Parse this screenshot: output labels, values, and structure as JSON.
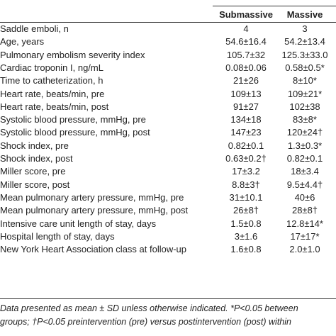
{
  "table": {
    "columns": [
      "Submassive",
      "Massive"
    ],
    "rows": [
      [
        "Saddle emboli, n",
        "4",
        "3"
      ],
      [
        "Age, years",
        "54.6±16.4",
        "54.2±13.4"
      ],
      [
        "Pulmonary embolism severity index",
        "105.7±32",
        "125.3±33.0"
      ],
      [
        "Cardiac troponin I, ng/mL",
        "0.08±0.06",
        "0.58±0.5*"
      ],
      [
        "Time to catheterization, h",
        "21±26",
        "8±10*"
      ],
      [
        "Heart rate, beats/min, pre",
        "109±13",
        "109±21*"
      ],
      [
        "Heart rate, beats/min, post",
        "91±27",
        "102±38"
      ],
      [
        "Systolic blood pressure, mmHg, pre",
        "134±18",
        "83±8*"
      ],
      [
        "Systolic blood pressure, mmHg, post",
        "147±23",
        "120±24†"
      ],
      [
        "Shock index, pre",
        "0.82±0.1",
        "1.3±0.3*"
      ],
      [
        "Shock index, post",
        "0.63±0.2†",
        "0.82±0.1"
      ],
      [
        "Miller score, pre",
        "17±3.2",
        "18±3.4"
      ],
      [
        "Miller score, post",
        "8.8±3†",
        "9.5±4.4†"
      ],
      [
        "Mean pulmonary artery pressure, mmHg, pre",
        "31±10.1",
        "40±6"
      ],
      [
        "Mean pulmonary artery pressure, mmHg, post",
        "26±8†",
        "28±8†"
      ],
      [
        "Intensive care unit length of stay, days",
        "1.5±0.8",
        "12.8±14*"
      ],
      [
        "Hospital length of stay, days",
        "3±1.6",
        "17±17*"
      ],
      [
        "New York Heart Association class at follow-up",
        "1.6±0.8",
        "2.0±1.0"
      ]
    ]
  },
  "footnote": [
    "Data presented as mean ± SD unless otherwise indicated. *P<0.05 between",
    "groups; †P<0.05 preintervention (pre) versus postintervention (post) within"
  ]
}
